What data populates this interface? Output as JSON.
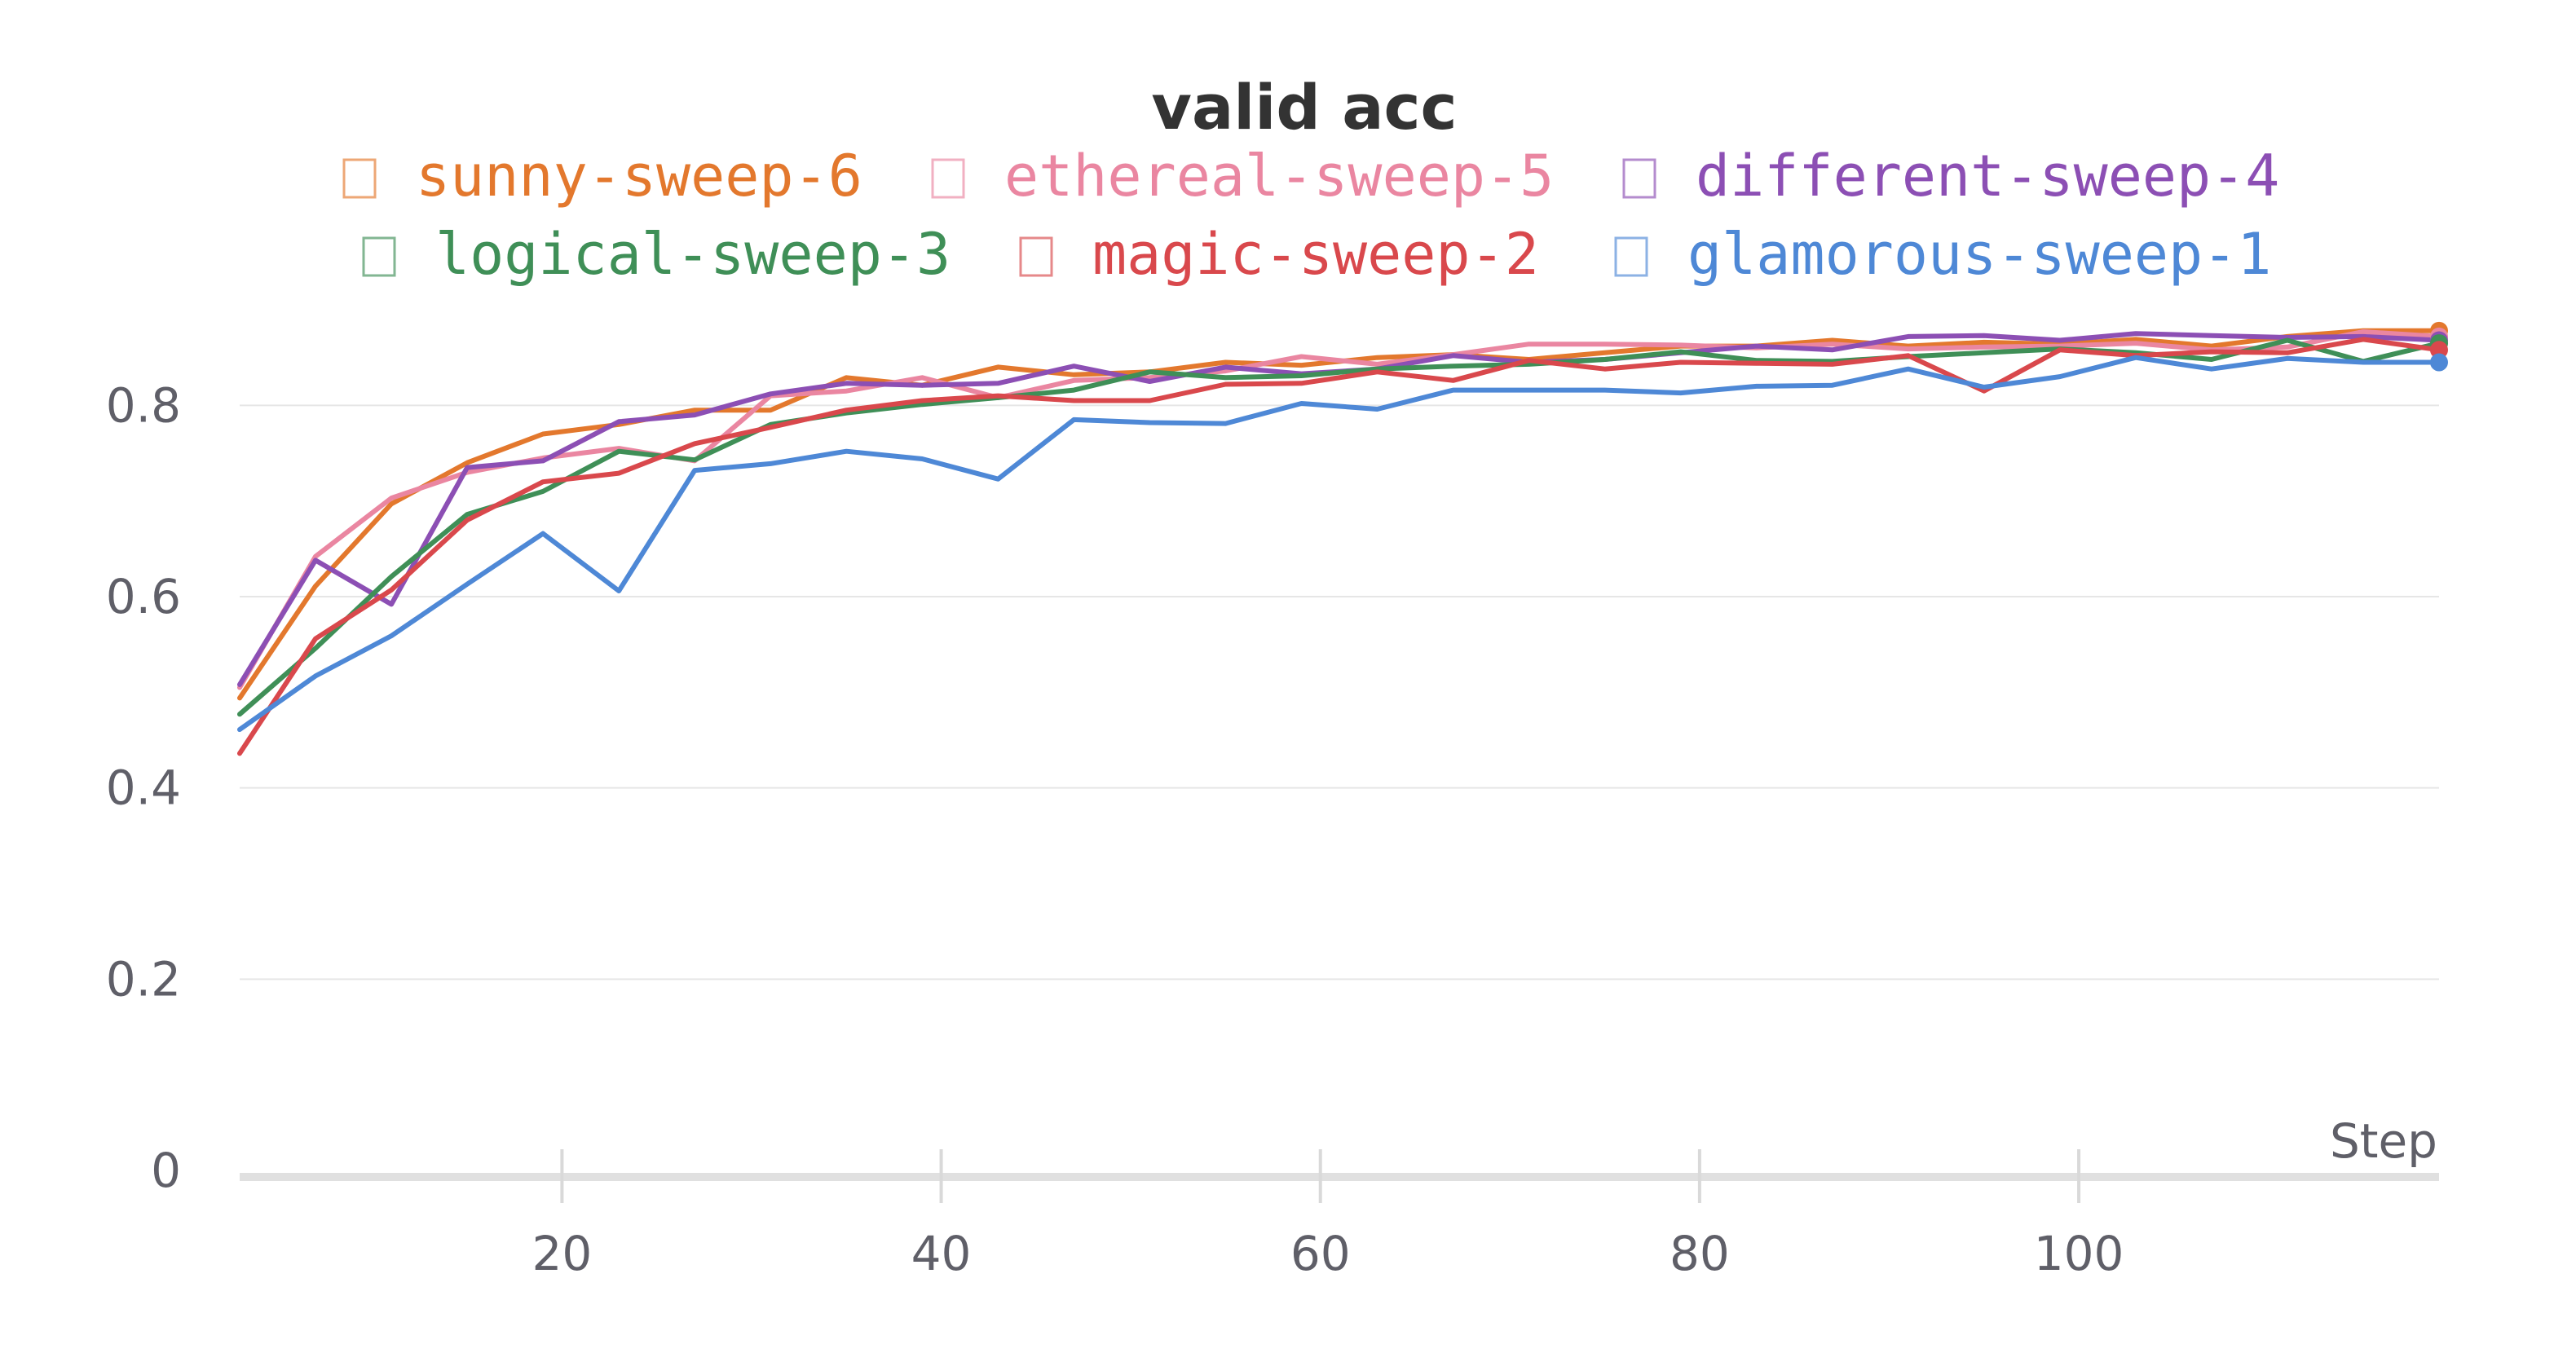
{
  "chart_data": {
    "type": "line",
    "title": "valid acc",
    "xlabel": "Step",
    "ylabel": "",
    "xlim": [
      3,
      119
    ],
    "ylim": [
      0,
      0.9
    ],
    "grid": true,
    "legend_position": "top",
    "x_ticks": [
      20,
      40,
      60,
      80,
      100
    ],
    "y_ticks": [
      0,
      0.2,
      0.4,
      0.6,
      0.8
    ],
    "y_tick_labels": [
      "0",
      "0.2",
      "0.4",
      "0.6",
      "0.8"
    ],
    "x": [
      3,
      7,
      11,
      15,
      19,
      23,
      27,
      31,
      35,
      39,
      43,
      47,
      51,
      55,
      59,
      63,
      67,
      71,
      75,
      79,
      83,
      87,
      91,
      95,
      99,
      103,
      107,
      111,
      115,
      119
    ],
    "series": [
      {
        "name": "sunny-sweep-6",
        "color": "#e3782d",
        "values": [
          0.494,
          0.611,
          0.697,
          0.74,
          0.77,
          0.78,
          0.795,
          0.795,
          0.829,
          0.821,
          0.84,
          0.832,
          0.835,
          0.845,
          0.842,
          0.85,
          0.853,
          0.848,
          0.855,
          0.862,
          0.862,
          0.868,
          0.862,
          0.866,
          0.864,
          0.869,
          0.862,
          0.872,
          0.878,
          0.878
        ]
      },
      {
        "name": "ethereal-sweep-5",
        "color": "#ea86a1",
        "values": [
          0.505,
          0.642,
          0.703,
          0.73,
          0.745,
          0.755,
          0.742,
          0.81,
          0.815,
          0.829,
          0.808,
          0.826,
          0.829,
          0.836,
          0.851,
          0.843,
          0.853,
          0.864,
          0.864,
          0.863,
          0.86,
          0.864,
          0.859,
          0.861,
          0.862,
          0.865,
          0.858,
          0.861,
          0.877,
          0.872
        ]
      },
      {
        "name": "different-sweep-4",
        "color": "#8c4fb4",
        "values": [
          0.508,
          0.638,
          0.592,
          0.735,
          0.742,
          0.783,
          0.79,
          0.812,
          0.823,
          0.821,
          0.823,
          0.841,
          0.825,
          0.84,
          0.833,
          0.838,
          0.852,
          0.845,
          0.848,
          0.855,
          0.862,
          0.858,
          0.872,
          0.873,
          0.868,
          0.875,
          0.873,
          0.871,
          0.872,
          0.868
        ]
      },
      {
        "name": "logical-sweep-3",
        "color": "#3f8f57",
        "values": [
          0.477,
          0.546,
          0.621,
          0.686,
          0.71,
          0.752,
          0.743,
          0.78,
          0.792,
          0.801,
          0.808,
          0.816,
          0.835,
          0.829,
          0.831,
          0.838,
          0.841,
          0.843,
          0.848,
          0.856,
          0.847,
          0.846,
          0.851,
          0.855,
          0.859,
          0.855,
          0.848,
          0.868,
          0.846,
          0.865
        ]
      },
      {
        "name": "magic-sweep-2",
        "color": "#d9484c",
        "values": [
          0.436,
          0.556,
          0.607,
          0.68,
          0.72,
          0.729,
          0.76,
          0.777,
          0.795,
          0.805,
          0.81,
          0.805,
          0.805,
          0.822,
          0.823,
          0.835,
          0.826,
          0.847,
          0.838,
          0.845,
          0.844,
          0.843,
          0.852,
          0.815,
          0.858,
          0.852,
          0.856,
          0.855,
          0.869,
          0.858
        ]
      },
      {
        "name": "glamorous-sweep-1",
        "color": "#4e88d6",
        "values": [
          0.461,
          0.517,
          0.559,
          0.613,
          0.666,
          0.606,
          0.732,
          0.739,
          0.752,
          0.744,
          0.723,
          0.785,
          0.782,
          0.781,
          0.802,
          0.796,
          0.816,
          0.816,
          0.816,
          0.813,
          0.82,
          0.821,
          0.838,
          0.819,
          0.83,
          0.85,
          0.838,
          0.849,
          0.845,
          0.845
        ]
      }
    ]
  }
}
